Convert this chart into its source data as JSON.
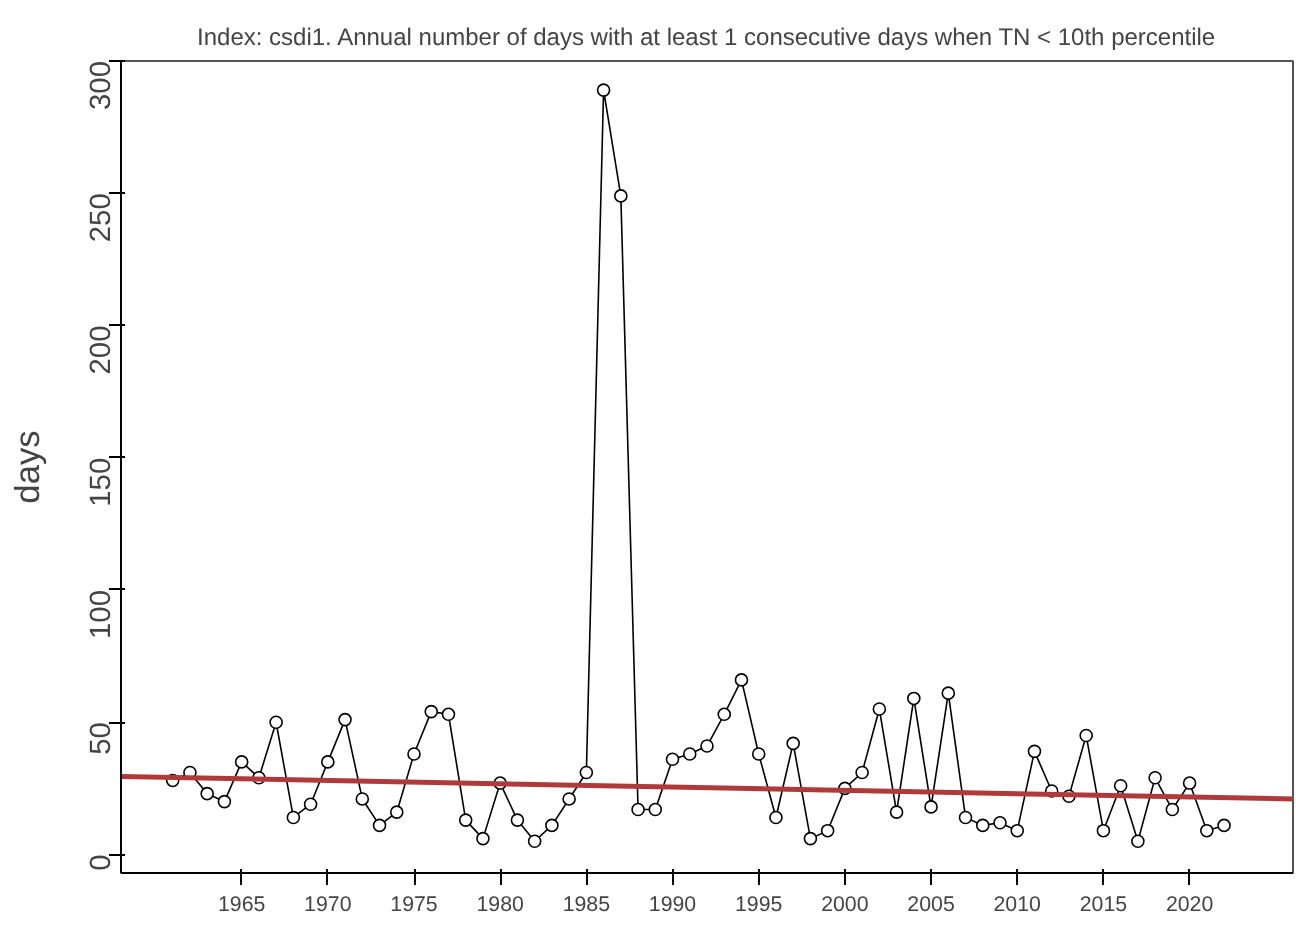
{
  "chart_data": {
    "type": "line",
    "title": "Index: csdi1. Annual number of days with at least 1 consecutive days when TN < 10th percentile",
    "ylabel": "days",
    "x": [
      1961,
      1962,
      1963,
      1964,
      1965,
      1966,
      1967,
      1968,
      1969,
      1970,
      1971,
      1972,
      1973,
      1974,
      1975,
      1976,
      1977,
      1978,
      1979,
      1980,
      1981,
      1982,
      1983,
      1984,
      1985,
      1986,
      1987,
      1988,
      1989,
      1990,
      1991,
      1992,
      1993,
      1994,
      1995,
      1996,
      1997,
      1998,
      1999,
      2000,
      2001,
      2002,
      2003,
      2004,
      2005,
      2006,
      2007,
      2008,
      2009,
      2010,
      2011,
      2012,
      2013,
      2014,
      2015,
      2016,
      2017,
      2018,
      2019,
      2020,
      2021,
      2022
    ],
    "series": [
      {
        "marker": "circle",
        "color": "#000000",
        "values": [
          28,
          31,
          23,
          20,
          35,
          29,
          50,
          14,
          19,
          35,
          51,
          21,
          11,
          16,
          38,
          54,
          53,
          13,
          6,
          27,
          13,
          5,
          11,
          21,
          31,
          289,
          249,
          17,
          17,
          36,
          38,
          41,
          53,
          66,
          38,
          14,
          42,
          6,
          9,
          25,
          31,
          55,
          16,
          59,
          18,
          61,
          14,
          11,
          12,
          9,
          39,
          24,
          22,
          45,
          9,
          26,
          5,
          29,
          17,
          27,
          9,
          11
        ]
      },
      {
        "marker": "none",
        "color": "#b03a3a",
        "x": [
          1958,
          2026
        ],
        "values": [
          29.5,
          21
        ]
      }
    ],
    "xlim": [
      1958,
      2026
    ],
    "ylim": [
      -7,
      300
    ],
    "xticks": [
      1965,
      1970,
      1975,
      1980,
      1985,
      1990,
      1995,
      2000,
      2005,
      2010,
      2015,
      2020
    ],
    "yticks": [
      0,
      50,
      100,
      150,
      200,
      250,
      300
    ],
    "grid": false
  }
}
